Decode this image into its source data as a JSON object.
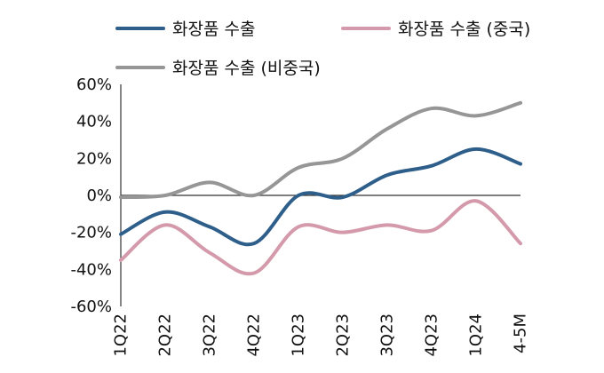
{
  "chart_data": {
    "type": "line",
    "title": "",
    "xlabel": "",
    "ylabel": "",
    "categories": [
      "1Q22",
      "2Q22",
      "3Q22",
      "4Q22",
      "1Q23",
      "2Q23",
      "3Q23",
      "4Q23",
      "1Q24",
      "4-5M"
    ],
    "ylim": [
      -60,
      60
    ],
    "yticks": [
      -60,
      -40,
      -20,
      0,
      20,
      40,
      60
    ],
    "ytick_labels": [
      "-60%",
      "-40%",
      "-20%",
      "0%",
      "20%",
      "40%",
      "60%"
    ],
    "grid": false,
    "legend_position": "top",
    "series": [
      {
        "name": "화장품 수출",
        "color": "#2e5e8a",
        "values": [
          -21,
          -9,
          -17,
          -26,
          0,
          -1,
          11,
          16,
          25,
          17
        ]
      },
      {
        "name": "화장품 수출 (중국)",
        "color": "#d49aab",
        "values": [
          -35,
          -16,
          -31,
          -42,
          -17,
          -20,
          -16,
          -19,
          -3,
          -26
        ]
      },
      {
        "name": "화장품 수출 (비중국)",
        "color": "#969696",
        "values": [
          -1,
          0,
          7,
          0,
          15,
          20,
          36,
          47,
          43,
          50
        ]
      }
    ]
  }
}
